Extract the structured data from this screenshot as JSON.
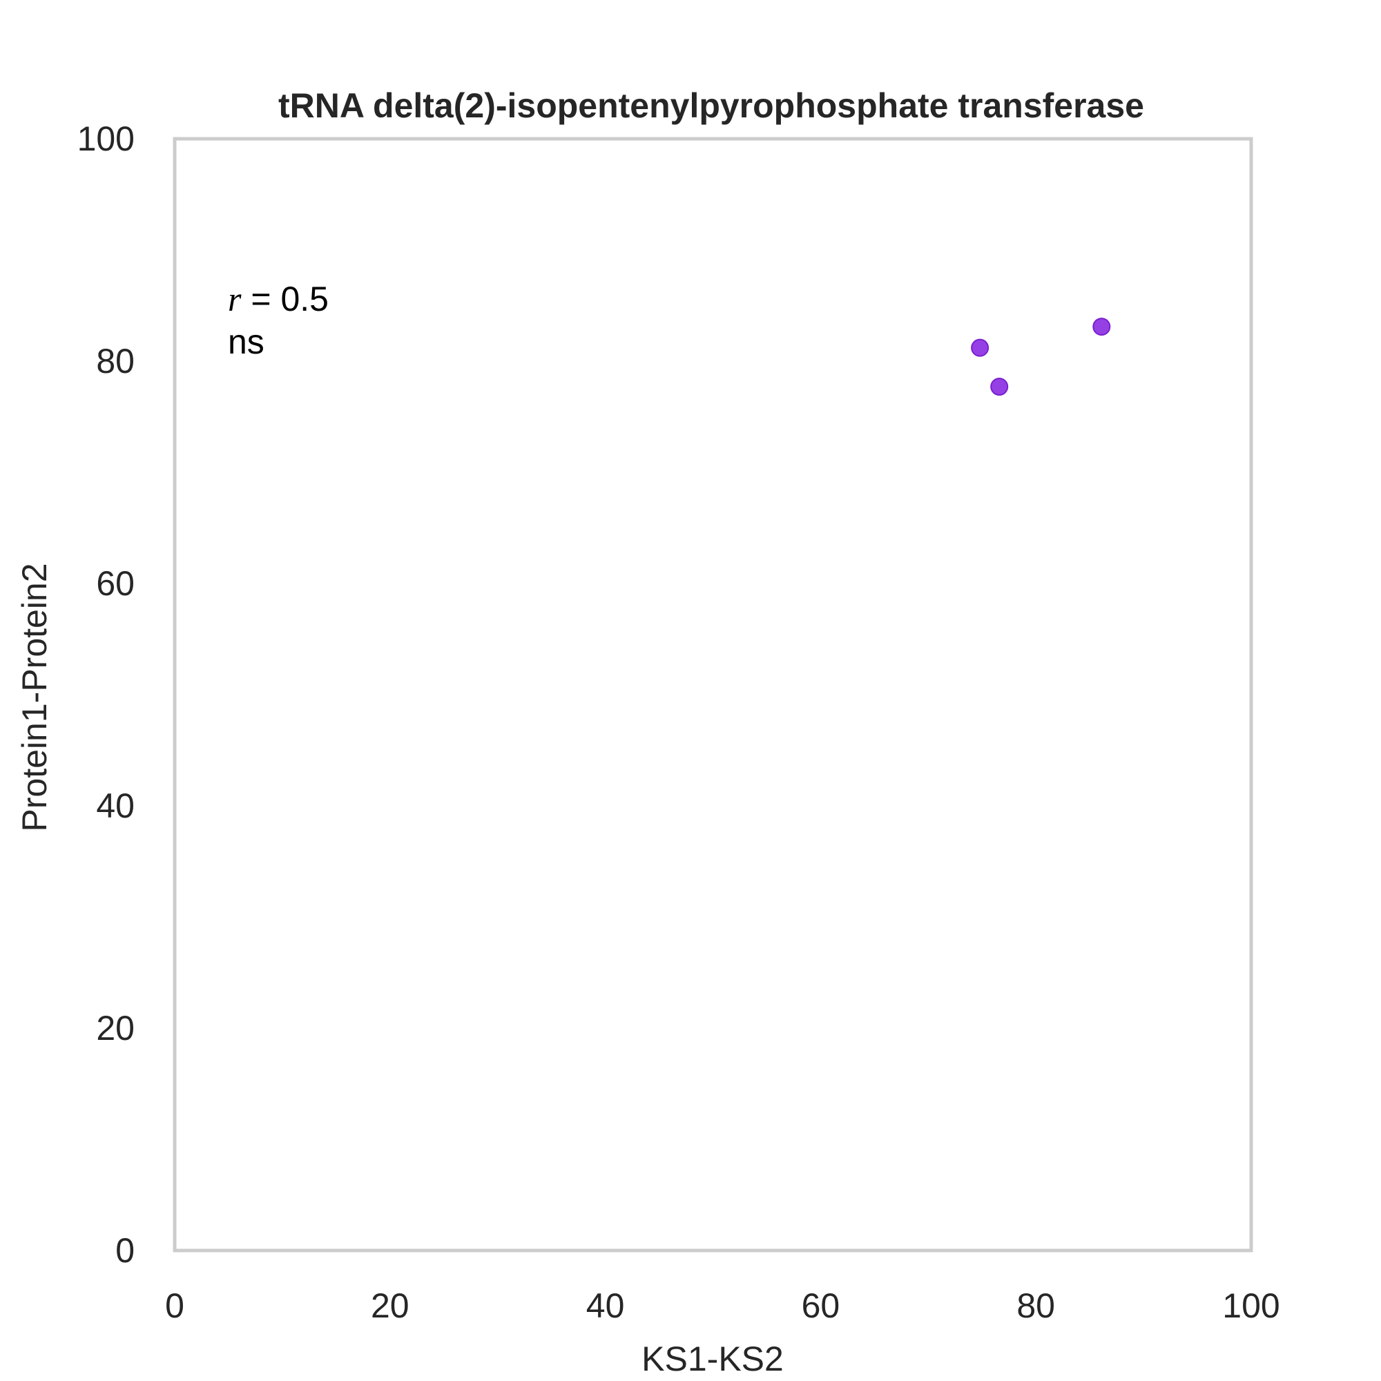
{
  "chart_data": {
    "type": "scatter",
    "title": "tRNA delta(2)-isopentenylpyrophosphate transferase",
    "xlabel": "KS1-KS2",
    "ylabel": "Protein1-Protein2",
    "xlim": [
      0,
      100
    ],
    "ylim": [
      0,
      100
    ],
    "x_ticks": [
      "0",
      "20",
      "40",
      "60",
      "80",
      "100"
    ],
    "y_ticks": [
      "0",
      "20",
      "40",
      "60",
      "80",
      "100"
    ],
    "grid": false,
    "point_color": "#8A2BE2",
    "frame_color": "#CCCCCC",
    "series": [
      {
        "points": [
          {
            "x": 74.8,
            "y": 81.2
          },
          {
            "x": 76.6,
            "y": 77.7
          },
          {
            "x": 86.1,
            "y": 83.1
          }
        ]
      }
    ],
    "annotation": {
      "r_symbol": "r",
      "r_value": " = 0.5",
      "significance": "ns"
    }
  }
}
